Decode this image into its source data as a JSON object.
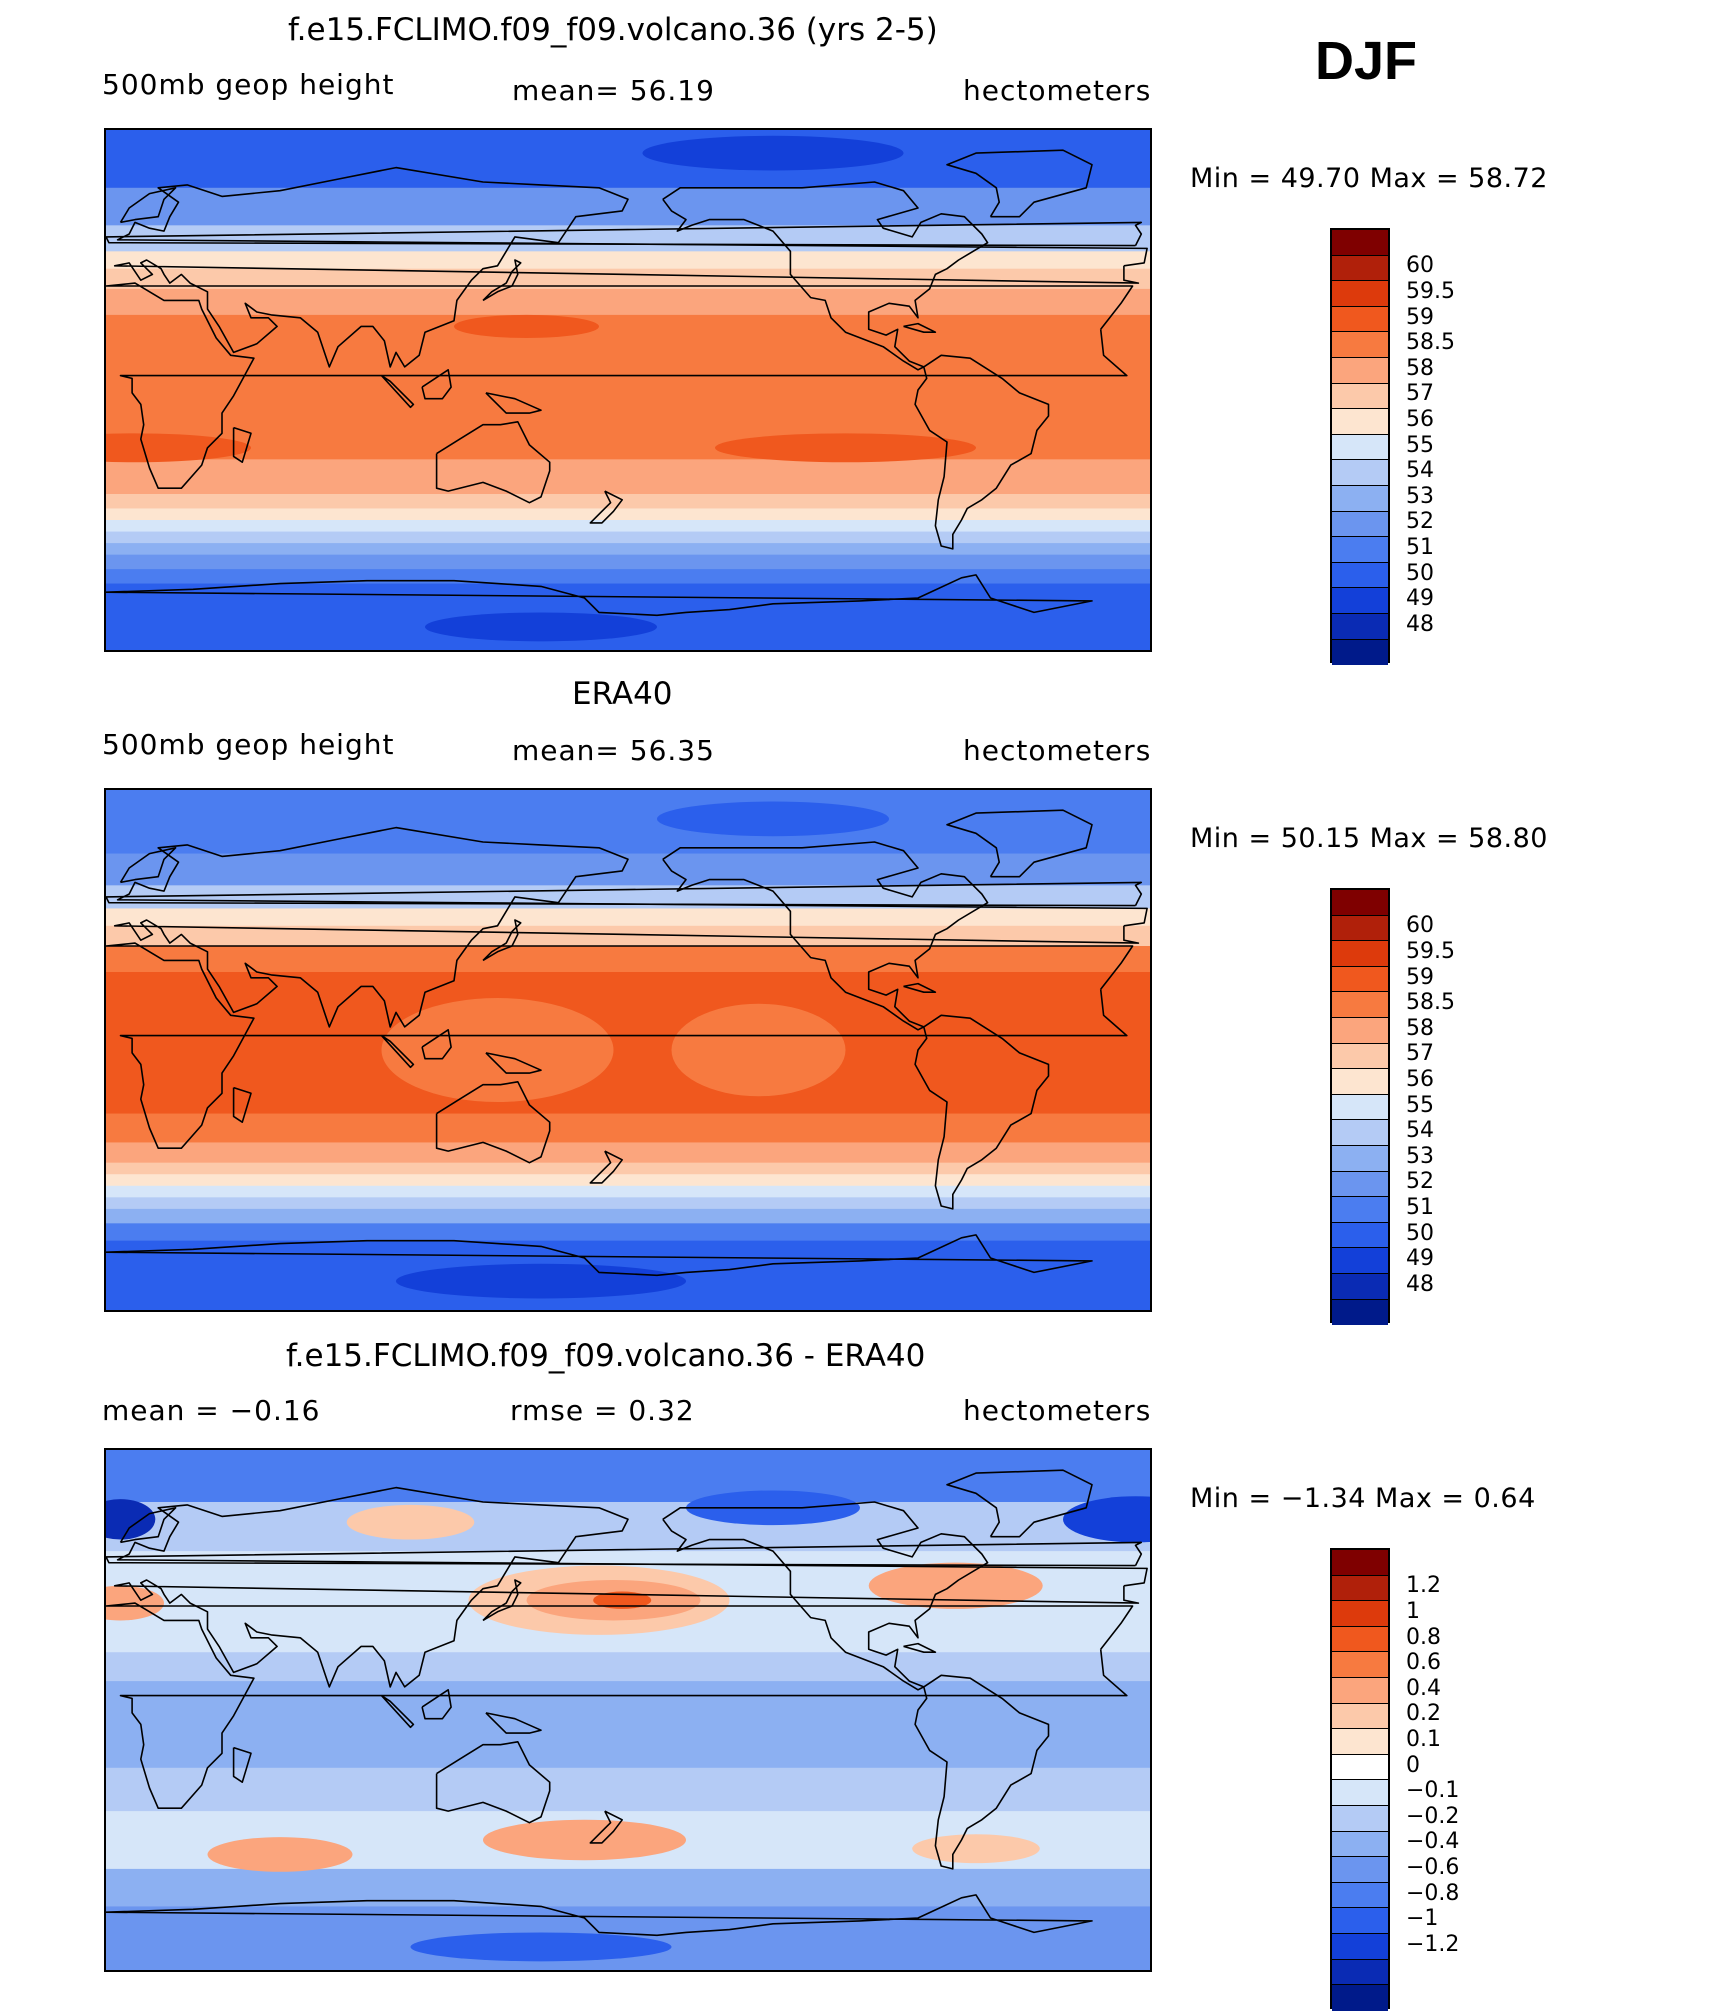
{
  "season_label": "DJF",
  "panels": [
    {
      "id": "model",
      "title": "f.e15.FCLIMO.f09_f09.volcano.36 (yrs 2-5)",
      "left_label": "500mb  geop  height",
      "center_label": "mean=   56.19",
      "right_label": "hectometers",
      "min_max": "Min  =    49.70  Max  =    58.72",
      "colorbar": {
        "colors": [
          "#7f0000",
          "#b0200a",
          "#dd3a0c",
          "#f0581e",
          "#f77a40",
          "#fba57d",
          "#fcc9aa",
          "#fde5d0",
          "#d6e6f9",
          "#b4cbf5",
          "#8cb0f2",
          "#6b95ef",
          "#4b7df0",
          "#2b5fec",
          "#1340d9",
          "#0a2bb4",
          "#001a8a"
        ],
        "labels": [
          "60",
          "59.5",
          "59",
          "58.5",
          "58",
          "57",
          "56",
          "55",
          "54",
          "53",
          "52",
          "51",
          "50",
          "49",
          "48"
        ]
      },
      "bands": [
        {
          "lat_top": 90,
          "lat_bot": 70,
          "color": "#2b5fec"
        },
        {
          "lat_top": 70,
          "lat_bot": 57,
          "color": "#6b95ef"
        },
        {
          "lat_top": 57,
          "lat_bot": 48,
          "color": "#b4cbf5"
        },
        {
          "lat_top": 48,
          "lat_bot": 42,
          "color": "#fde5d0"
        },
        {
          "lat_top": 42,
          "lat_bot": 35,
          "color": "#fcc9aa"
        },
        {
          "lat_top": 35,
          "lat_bot": 26,
          "color": "#fba57d"
        },
        {
          "lat_top": 26,
          "lat_bot": -24,
          "color": "#f77a40"
        },
        {
          "lat_top": -24,
          "lat_bot": -36,
          "color": "#fba57d"
        },
        {
          "lat_top": -36,
          "lat_bot": -41,
          "color": "#fcc9aa"
        },
        {
          "lat_top": -41,
          "lat_bot": -45,
          "color": "#fde5d0"
        },
        {
          "lat_top": -45,
          "lat_bot": -49,
          "color": "#d6e6f9"
        },
        {
          "lat_top": -49,
          "lat_bot": -53,
          "color": "#b4cbf5"
        },
        {
          "lat_top": -53,
          "lat_bot": -57,
          "color": "#8cb0f2"
        },
        {
          "lat_top": -57,
          "lat_bot": -62,
          "color": "#6b95ef"
        },
        {
          "lat_top": -62,
          "lat_bot": -67,
          "color": "#4b7df0"
        },
        {
          "lat_top": -67,
          "lat_bot": -90,
          "color": "#2b5fec"
        }
      ],
      "blobs": [
        {
          "lon": 145,
          "lat": 22,
          "rx": 25,
          "ry": 4,
          "color": "#f0581e"
        },
        {
          "lon": 10,
          "lat": -20,
          "rx": 40,
          "ry": 5,
          "color": "#f0581e"
        },
        {
          "lon": 255,
          "lat": -20,
          "rx": 45,
          "ry": 5,
          "color": "#f0581e"
        },
        {
          "lon": 230,
          "lat": 82,
          "rx": 45,
          "ry": 6,
          "color": "#1340d9"
        },
        {
          "lon": 150,
          "lat": -82,
          "rx": 40,
          "ry": 5,
          "color": "#1340d9"
        }
      ]
    },
    {
      "id": "obs",
      "title": "ERA40",
      "left_label": "500mb  geop  height",
      "center_label": "mean=   56.35",
      "right_label": "hectometers",
      "min_max": "Min  =    50.15  Max  =    58.80",
      "colorbar": {
        "colors": [
          "#7f0000",
          "#b0200a",
          "#dd3a0c",
          "#f0581e",
          "#f77a40",
          "#fba57d",
          "#fcc9aa",
          "#fde5d0",
          "#d6e6f9",
          "#b4cbf5",
          "#8cb0f2",
          "#6b95ef",
          "#4b7df0",
          "#2b5fec",
          "#1340d9",
          "#0a2bb4",
          "#001a8a"
        ],
        "labels": [
          "60",
          "59.5",
          "59",
          "58.5",
          "58",
          "57",
          "56",
          "55",
          "54",
          "53",
          "52",
          "51",
          "50",
          "49",
          "48"
        ]
      },
      "bands": [
        {
          "lat_top": 90,
          "lat_bot": 68,
          "color": "#4b7df0"
        },
        {
          "lat_top": 68,
          "lat_bot": 57,
          "color": "#6b95ef"
        },
        {
          "lat_top": 57,
          "lat_bot": 49,
          "color": "#b4cbf5"
        },
        {
          "lat_top": 49,
          "lat_bot": 43,
          "color": "#fde5d0"
        },
        {
          "lat_top": 43,
          "lat_bot": 36,
          "color": "#fcc9aa"
        },
        {
          "lat_top": 36,
          "lat_bot": 27,
          "color": "#f77a40"
        },
        {
          "lat_top": 27,
          "lat_bot": -22,
          "color": "#f0581e"
        },
        {
          "lat_top": -22,
          "lat_bot": -32,
          "color": "#f77a40"
        },
        {
          "lat_top": -32,
          "lat_bot": -39,
          "color": "#fba57d"
        },
        {
          "lat_top": -39,
          "lat_bot": -43,
          "color": "#fcc9aa"
        },
        {
          "lat_top": -43,
          "lat_bot": -47,
          "color": "#fde5d0"
        },
        {
          "lat_top": -47,
          "lat_bot": -51,
          "color": "#d6e6f9"
        },
        {
          "lat_top": -51,
          "lat_bot": -55,
          "color": "#b4cbf5"
        },
        {
          "lat_top": -55,
          "lat_bot": -60,
          "color": "#8cb0f2"
        },
        {
          "lat_top": -60,
          "lat_bot": -66,
          "color": "#4b7df0"
        },
        {
          "lat_top": -66,
          "lat_bot": -90,
          "color": "#2b5fec"
        }
      ],
      "blobs": [
        {
          "lon": 135,
          "lat": 0,
          "rx": 40,
          "ry": 18,
          "color": "#f77a40"
        },
        {
          "lon": 225,
          "lat": 0,
          "rx": 30,
          "ry": 16,
          "color": "#f77a40"
        },
        {
          "lon": 230,
          "lat": 80,
          "rx": 40,
          "ry": 6,
          "color": "#2b5fec"
        },
        {
          "lon": 150,
          "lat": -80,
          "rx": 50,
          "ry": 6,
          "color": "#1340d9"
        }
      ]
    },
    {
      "id": "diff",
      "title": "f.e15.FCLIMO.f09_f09.volcano.36 - ERA40",
      "left_label": "mean  =    −0.16",
      "center_label": "rmse  =     0.32",
      "right_label": "hectometers",
      "min_max": "Min  =   −1.34  Max  =      0.64",
      "colorbar": {
        "colors": [
          "#7f0000",
          "#b0200a",
          "#dd3a0c",
          "#f0581e",
          "#f77a40",
          "#fba57d",
          "#fcc9aa",
          "#fde5d0",
          "#ffffff",
          "#d6e6f9",
          "#b4cbf5",
          "#8cb0f2",
          "#6b95ef",
          "#4b7df0",
          "#2b5fec",
          "#1340d9",
          "#0a2bb4",
          "#001a8a"
        ],
        "labels": [
          "1.2",
          "1",
          "0.8",
          "0.6",
          "0.4",
          "0.2",
          "0.1",
          "0",
          "−0.1",
          "−0.2",
          "−0.4",
          "−0.6",
          "−0.8",
          "−1",
          "−1.2"
        ]
      },
      "bands": [
        {
          "lat_top": 90,
          "lat_bot": 72,
          "color": "#4b7df0"
        },
        {
          "lat_top": 72,
          "lat_bot": 55,
          "color": "#b4cbf5"
        },
        {
          "lat_top": 55,
          "lat_bot": 45,
          "color": "#d6e6f9"
        },
        {
          "lat_top": 45,
          "lat_bot": 20,
          "color": "#d6e6f9"
        },
        {
          "lat_top": 20,
          "lat_bot": 10,
          "color": "#b4cbf5"
        },
        {
          "lat_top": 10,
          "lat_bot": -20,
          "color": "#8cb0f2"
        },
        {
          "lat_top": -20,
          "lat_bot": -35,
          "color": "#b4cbf5"
        },
        {
          "lat_top": -35,
          "lat_bot": -55,
          "color": "#d6e6f9"
        },
        {
          "lat_top": -55,
          "lat_bot": -68,
          "color": "#8cb0f2"
        },
        {
          "lat_top": -68,
          "lat_bot": -90,
          "color": "#6b95ef"
        }
      ],
      "blobs": [
        {
          "lon": 170,
          "lat": 38,
          "rx": 45,
          "ry": 12,
          "color": "#fcc9aa"
        },
        {
          "lon": 175,
          "lat": 38,
          "rx": 30,
          "ry": 7,
          "color": "#fba57d"
        },
        {
          "lon": 178,
          "lat": 38,
          "rx": 10,
          "ry": 3,
          "color": "#f0581e"
        },
        {
          "lon": 293,
          "lat": 43,
          "rx": 30,
          "ry": 8,
          "color": "#fba57d"
        },
        {
          "lon": 105,
          "lat": 65,
          "rx": 22,
          "ry": 6,
          "color": "#fcc9aa"
        },
        {
          "lon": 5,
          "lat": 37,
          "rx": 15,
          "ry": 6,
          "color": "#fba57d"
        },
        {
          "lon": 165,
          "lat": -45,
          "rx": 35,
          "ry": 7,
          "color": "#fba57d"
        },
        {
          "lon": 60,
          "lat": -50,
          "rx": 25,
          "ry": 6,
          "color": "#fba57d"
        },
        {
          "lon": 300,
          "lat": -48,
          "rx": 22,
          "ry": 5,
          "color": "#fcc9aa"
        },
        {
          "lon": 355,
          "lat": 66,
          "rx": 25,
          "ry": 8,
          "color": "#1340d9"
        },
        {
          "lon": 5,
          "lat": 66,
          "rx": 12,
          "ry": 7,
          "color": "#0a2bb4"
        },
        {
          "lon": 230,
          "lat": 70,
          "rx": 30,
          "ry": 6,
          "color": "#2b5fec"
        },
        {
          "lon": 150,
          "lat": -82,
          "rx": 45,
          "ry": 5,
          "color": "#2b5fec"
        }
      ]
    }
  ]
}
